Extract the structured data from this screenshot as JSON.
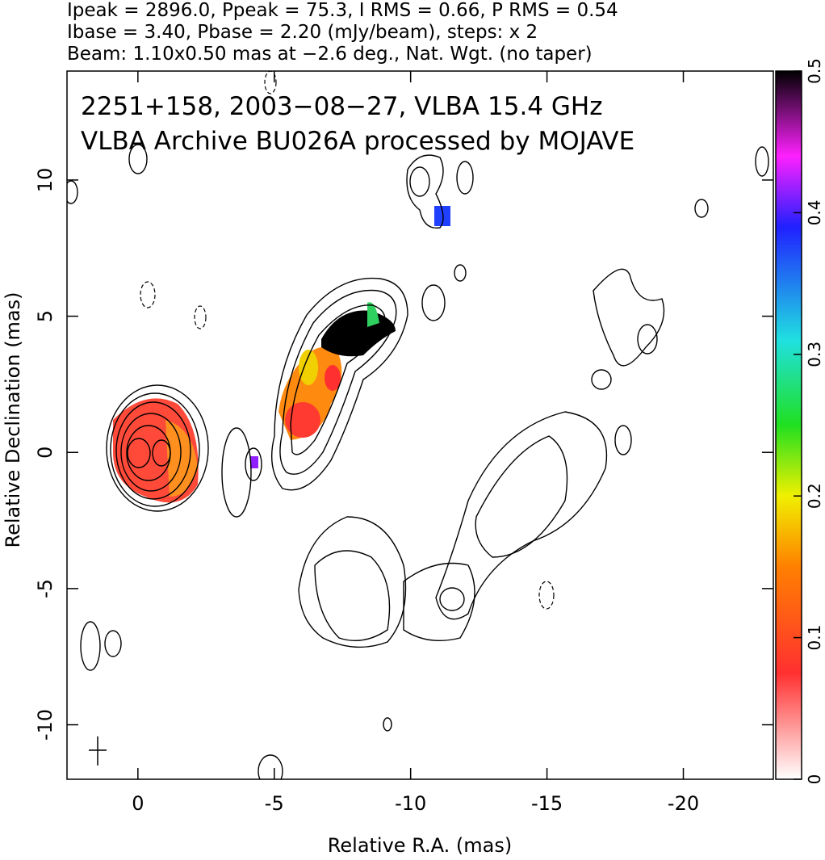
{
  "chart_data": {
    "type": "contour",
    "header": [
      "Ipeak = 2896.0, Ppeak = 75.3, I RMS = 0.66, P RMS = 0.54",
      "Ibase = 3.40, Pbase = 2.20 (mJy/beam), steps: x 2",
      "Beam: 1.10x0.50 mas at −2.6 deg., Nat. Wgt. (no taper)"
    ],
    "annotations": [
      "2251+158, 2003−08−27, VLBA 15.4 GHz",
      "VLBA Archive BU026A processed by MOJAVE"
    ],
    "x_label": "Relative R.A. (mas)",
    "y_label": "Relative Declination (mas)",
    "xlim": [
      2.6,
      -23.3
    ],
    "ylim": [
      -12,
      14
    ],
    "xticks": [
      0,
      -5,
      -10,
      -15,
      -20
    ],
    "yticks": [
      -10,
      -5,
      0,
      5,
      10
    ],
    "colorbar": {
      "lim": [
        0,
        0.5
      ],
      "ticks": [
        0,
        0.1,
        0.2,
        0.3,
        0.4,
        0.5
      ]
    }
  }
}
